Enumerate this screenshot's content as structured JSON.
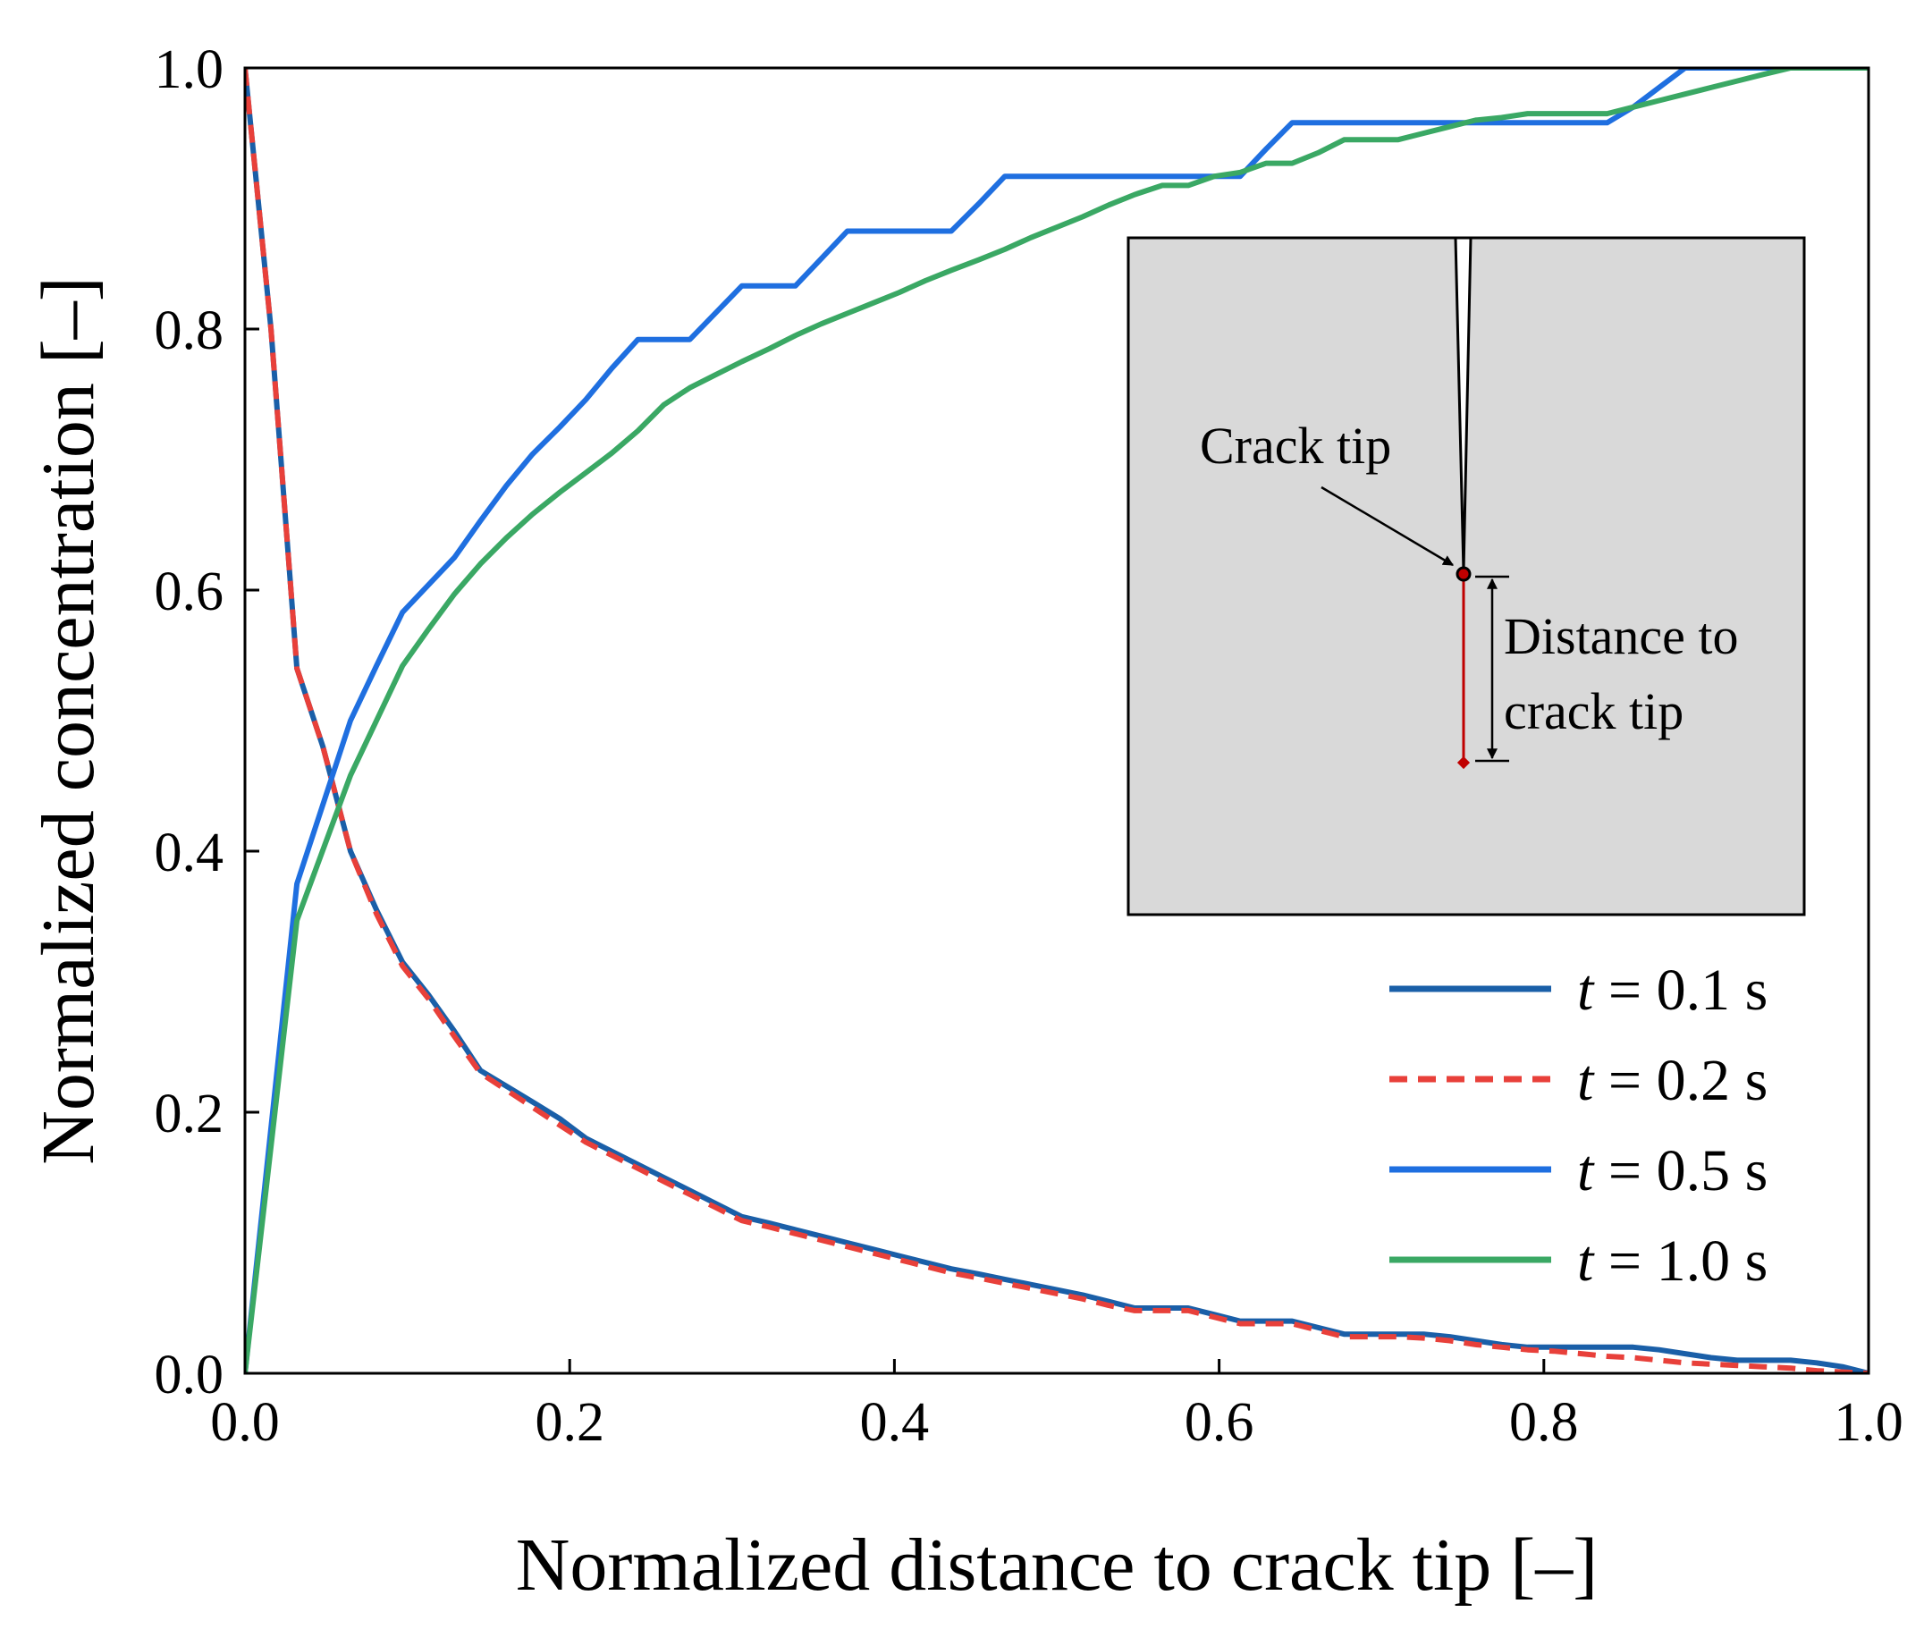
{
  "chart_data": {
    "type": "line",
    "xlabel": "Normalized distance to crack tip [–]",
    "ylabel": "Normalized concentration [–]",
    "xlim": [
      0,
      1
    ],
    "ylim": [
      0,
      1
    ],
    "xticks": [
      "0.0",
      "0.2",
      "0.4",
      "0.6",
      "0.8",
      "1.0"
    ],
    "yticks": [
      "0.0",
      "0.2",
      "0.4",
      "0.6",
      "0.8",
      "1.0"
    ],
    "grid": false,
    "legend_position": "bottom-right",
    "series": [
      {
        "name": "t = 0.1 s",
        "legend_var": "t",
        "legend_rest": " = 0.1 s",
        "color": "#1a5fa8",
        "dashed": false,
        "x": [
          0.0,
          0.016,
          0.032,
          0.048,
          0.065,
          0.081,
          0.097,
          0.113,
          0.129,
          0.145,
          0.161,
          0.177,
          0.194,
          0.21,
          0.226,
          0.242,
          0.258,
          0.274,
          0.29,
          0.306,
          0.323,
          0.339,
          0.355,
          0.371,
          0.387,
          0.403,
          0.419,
          0.435,
          0.452,
          0.468,
          0.484,
          0.5,
          0.516,
          0.532,
          0.548,
          0.565,
          0.581,
          0.597,
          0.613,
          0.629,
          0.645,
          0.661,
          0.677,
          0.694,
          0.71,
          0.726,
          0.742,
          0.758,
          0.774,
          0.79,
          0.806,
          0.823,
          0.839,
          0.855,
          0.871,
          0.887,
          0.903,
          0.919,
          0.935,
          0.952,
          0.968,
          0.984,
          1.0
        ],
        "y": [
          1.0,
          0.8,
          0.54,
          0.48,
          0.4,
          0.355,
          0.315,
          0.29,
          0.262,
          0.232,
          0.22,
          0.208,
          0.195,
          0.18,
          0.17,
          0.16,
          0.15,
          0.14,
          0.13,
          0.12,
          0.115,
          0.11,
          0.105,
          0.1,
          0.095,
          0.09,
          0.085,
          0.08,
          0.076,
          0.072,
          0.068,
          0.064,
          0.06,
          0.055,
          0.05,
          0.05,
          0.05,
          0.045,
          0.04,
          0.04,
          0.04,
          0.035,
          0.03,
          0.03,
          0.03,
          0.03,
          0.028,
          0.025,
          0.022,
          0.02,
          0.02,
          0.02,
          0.02,
          0.02,
          0.018,
          0.015,
          0.012,
          0.01,
          0.01,
          0.01,
          0.008,
          0.005,
          0.0
        ]
      },
      {
        "name": "t = 0.2 s",
        "legend_var": "t",
        "legend_rest": " = 0.2 s",
        "color": "#e8403a",
        "dashed": true,
        "x": [
          0.0,
          0.016,
          0.032,
          0.048,
          0.065,
          0.081,
          0.097,
          0.113,
          0.129,
          0.145,
          0.161,
          0.177,
          0.194,
          0.21,
          0.226,
          0.242,
          0.258,
          0.274,
          0.29,
          0.306,
          0.323,
          0.339,
          0.355,
          0.371,
          0.387,
          0.403,
          0.419,
          0.435,
          0.452,
          0.468,
          0.484,
          0.5,
          0.516,
          0.532,
          0.548,
          0.565,
          0.581,
          0.597,
          0.613,
          0.629,
          0.645,
          0.661,
          0.677,
          0.694,
          0.71,
          0.726,
          0.742,
          0.758,
          0.774,
          0.79,
          0.806,
          0.823,
          0.839,
          0.855,
          0.871,
          0.887,
          0.903,
          0.919,
          0.935,
          0.952,
          0.968,
          0.984,
          1.0
        ],
        "y": [
          1.0,
          0.8,
          0.54,
          0.48,
          0.4,
          0.352,
          0.312,
          0.287,
          0.258,
          0.23,
          0.217,
          0.204,
          0.19,
          0.177,
          0.167,
          0.157,
          0.147,
          0.137,
          0.127,
          0.117,
          0.112,
          0.107,
          0.102,
          0.097,
          0.092,
          0.087,
          0.082,
          0.077,
          0.073,
          0.069,
          0.065,
          0.061,
          0.057,
          0.052,
          0.048,
          0.048,
          0.048,
          0.043,
          0.038,
          0.038,
          0.038,
          0.033,
          0.028,
          0.028,
          0.028,
          0.027,
          0.025,
          0.022,
          0.02,
          0.018,
          0.017,
          0.015,
          0.013,
          0.012,
          0.01,
          0.008,
          0.007,
          0.006,
          0.005,
          0.004,
          0.002,
          0.001,
          0.0
        ]
      },
      {
        "name": "t = 0.5 s",
        "legend_var": "t",
        "legend_rest": " = 0.5 s",
        "color": "#1f6fe0",
        "dashed": false,
        "x": [
          0.0,
          0.032,
          0.065,
          0.081,
          0.097,
          0.113,
          0.129,
          0.145,
          0.161,
          0.177,
          0.194,
          0.21,
          0.226,
          0.242,
          0.258,
          0.274,
          0.29,
          0.306,
          0.323,
          0.339,
          0.355,
          0.371,
          0.387,
          0.403,
          0.419,
          0.435,
          0.452,
          0.468,
          0.484,
          0.5,
          0.516,
          0.532,
          0.548,
          0.565,
          0.581,
          0.597,
          0.613,
          0.629,
          0.645,
          0.661,
          0.677,
          0.694,
          0.71,
          0.726,
          0.742,
          0.758,
          0.774,
          0.79,
          0.806,
          0.823,
          0.839,
          0.855,
          0.871,
          0.887,
          0.903,
          0.919,
          0.935,
          0.952,
          0.968,
          0.984,
          1.0
        ],
        "y": [
          0.0,
          0.375,
          0.5,
          0.542,
          0.583,
          0.604,
          0.625,
          0.653,
          0.68,
          0.704,
          0.725,
          0.746,
          0.77,
          0.792,
          0.792,
          0.792,
          0.8125,
          0.833,
          0.833,
          0.833,
          0.854,
          0.875,
          0.875,
          0.875,
          0.875,
          0.875,
          0.896,
          0.917,
          0.917,
          0.917,
          0.917,
          0.917,
          0.917,
          0.917,
          0.917,
          0.917,
          0.917,
          0.938,
          0.958,
          0.958,
          0.958,
          0.958,
          0.958,
          0.958,
          0.958,
          0.958,
          0.958,
          0.958,
          0.958,
          0.958,
          0.958,
          0.97,
          0.985,
          1.0,
          1.0,
          1.0,
          1.0,
          1.0,
          1.0,
          1.0,
          1.0
        ]
      },
      {
        "name": "t = 1.0 s",
        "legend_var": "t",
        "legend_rest": " = 1.0 s",
        "color": "#3aa864",
        "dashed": false,
        "x": [
          0.0,
          0.032,
          0.065,
          0.081,
          0.097,
          0.113,
          0.129,
          0.145,
          0.161,
          0.177,
          0.194,
          0.21,
          0.226,
          0.242,
          0.258,
          0.274,
          0.29,
          0.306,
          0.323,
          0.339,
          0.355,
          0.371,
          0.387,
          0.403,
          0.419,
          0.435,
          0.452,
          0.468,
          0.484,
          0.5,
          0.516,
          0.532,
          0.548,
          0.565,
          0.581,
          0.597,
          0.613,
          0.629,
          0.645,
          0.661,
          0.677,
          0.694,
          0.71,
          0.726,
          0.742,
          0.758,
          0.774,
          0.79,
          0.806,
          0.823,
          0.839,
          0.855,
          0.871,
          0.887,
          0.903,
          0.919,
          0.935,
          0.952,
          0.968,
          0.984,
          1.0
        ],
        "y": [
          0.0,
          0.347,
          0.458,
          0.5,
          0.542,
          0.57,
          0.597,
          0.62,
          0.64,
          0.658,
          0.675,
          0.69,
          0.705,
          0.722,
          0.742,
          0.755,
          0.765,
          0.775,
          0.785,
          0.795,
          0.804,
          0.812,
          0.82,
          0.828,
          0.837,
          0.845,
          0.853,
          0.861,
          0.87,
          0.878,
          0.886,
          0.895,
          0.903,
          0.91,
          0.91,
          0.917,
          0.92,
          0.927,
          0.927,
          0.935,
          0.945,
          0.945,
          0.945,
          0.95,
          0.955,
          0.96,
          0.962,
          0.965,
          0.965,
          0.965,
          0.965,
          0.97,
          0.975,
          0.98,
          0.985,
          0.99,
          0.995,
          1.0,
          1.0,
          1.0,
          1.0
        ]
      }
    ],
    "inset": {
      "crack_tip_label": "Crack tip",
      "distance_label_line1": "Distance to",
      "distance_label_line2": "crack tip",
      "region_color": "#d9d9d9",
      "marker_line_color": "#c00000"
    }
  }
}
